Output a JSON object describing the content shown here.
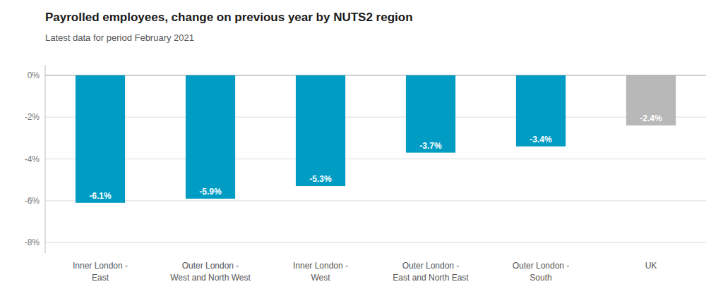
{
  "chart_data": {
    "type": "bar",
    "title": "Payrolled employees, change on previous year by NUTS2 region",
    "subtitle": "Latest data for period February 2021",
    "categories": [
      "Inner London -\nEast",
      "Outer London -\nWest and North West",
      "Inner London -\nWest",
      "Outer London -\nEast and North East",
      "Outer London -\nSouth",
      "UK"
    ],
    "values": [
      -6.1,
      -5.9,
      -5.3,
      -3.7,
      -3.4,
      -2.4
    ],
    "value_labels": [
      "-6.1%",
      "-5.9%",
      "-5.3%",
      "-3.7%",
      "-3.4%",
      "-2.4%"
    ],
    "colors": [
      "#009cc4",
      "#009cc4",
      "#009cc4",
      "#009cc4",
      "#009cc4",
      "#b8b8b8"
    ],
    "ylim": [
      -8.5,
      0.5
    ],
    "yticks": [
      {
        "value": 0,
        "label": "0%"
      },
      {
        "value": -2,
        "label": "-2%"
      },
      {
        "value": -4,
        "label": "-4%"
      },
      {
        "value": -6,
        "label": "-6%"
      },
      {
        "value": -8,
        "label": "-8%"
      }
    ],
    "grid": true,
    "data_labels": true
  }
}
